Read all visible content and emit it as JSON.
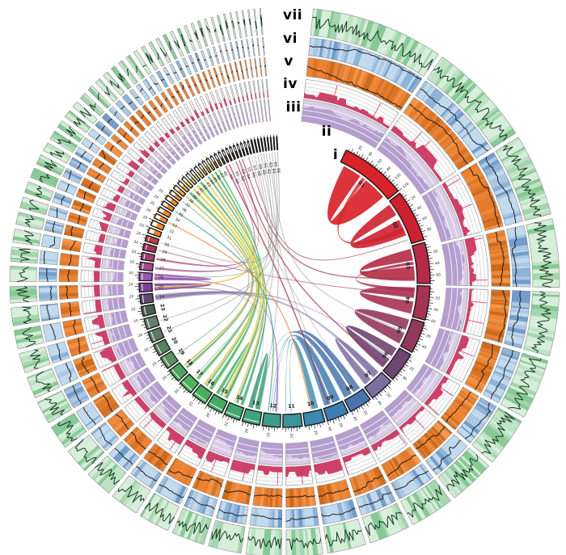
{
  "figure": {
    "background": "#ffffff",
    "description": "Circos-style circular genome plot: seven concentric tracks (i ideogram, ii scale ticks, iii purple density, iv white track with crimson histogram, v orange track with line, vi blue track with line, vii green track with line) over 66 chromosome/scaffold segments with syntenic ribbons in the centre."
  },
  "track_labels": {
    "vii": "vii",
    "vi": "vi",
    "v": "v",
    "iv": "iv",
    "iii": "iii",
    "ii": "ii",
    "i": "i"
  },
  "chart_data": {
    "type": "circos",
    "seed": 11,
    "scale": {
      "minor_tick": 5,
      "major_tick": 10,
      "major_label_interval": 20
    },
    "tracks": [
      {
        "id": "vii",
        "label": "vii",
        "kind": "stripe-line",
        "bg": "#d7eeda",
        "stripe": "#53b069",
        "line": "#0d3018"
      },
      {
        "id": "vi",
        "label": "vi",
        "kind": "stripe-line",
        "bg": "#c2daee",
        "stripe": "#3e74b4",
        "line": "#15161a"
      },
      {
        "id": "v",
        "label": "v",
        "kind": "stripe-line",
        "bg": "#ee8233",
        "stripe": "#b85c0f",
        "stripe2": "#f9a65f",
        "line": "#15161a"
      },
      {
        "id": "iv",
        "label": "iv",
        "kind": "grid-hist",
        "bg": "#ffffff",
        "grid": "#c4c4c4",
        "hist": "#cb3763"
      },
      {
        "id": "iii",
        "label": "iii",
        "kind": "hist-band",
        "bg": "#d9cce6",
        "hist": "#b39bce",
        "grid": "#ffffff"
      },
      {
        "id": "ii",
        "label": "ii",
        "kind": "scale-ticks",
        "tick": "#222222"
      },
      {
        "id": "i",
        "label": "i",
        "kind": "ideogram",
        "outline": "#141414"
      }
    ],
    "segments": [
      {
        "id": "01",
        "size": 120,
        "color": "#d8232a"
      },
      {
        "id": "02",
        "size": 95,
        "color": "#ce2130"
      },
      {
        "id": "03",
        "size": 75,
        "color": "#b52a47"
      },
      {
        "id": "04",
        "size": 62,
        "color": "#a63352"
      },
      {
        "id": "05",
        "size": 58,
        "color": "#93395c"
      },
      {
        "id": "06",
        "size": 55,
        "color": "#6f4572"
      },
      {
        "id": "07",
        "size": 45,
        "color": "#7b6fa0"
      },
      {
        "id": "08",
        "size": 42,
        "color": "#4a73ad"
      },
      {
        "id": "09",
        "size": 40,
        "color": "#3f7eb3"
      },
      {
        "id": "10",
        "size": 37,
        "color": "#3b88b0"
      },
      {
        "id": "11",
        "size": 35,
        "color": "#3d9499"
      },
      {
        "id": "12",
        "size": 33,
        "color": "#3f9e89"
      },
      {
        "id": "13",
        "size": 32,
        "color": "#3fa37b"
      },
      {
        "id": "14",
        "size": 30,
        "color": "#42a76d"
      },
      {
        "id": "15",
        "size": 30,
        "color": "#45ab63"
      },
      {
        "id": "16",
        "size": 28,
        "color": "#4aae5d"
      },
      {
        "id": "17",
        "size": 26,
        "color": "#4fb15a"
      },
      {
        "id": "18",
        "size": 25,
        "color": "#4aa55b"
      },
      {
        "id": "19",
        "size": 23,
        "color": "#5f9160"
      },
      {
        "id": "20",
        "size": 22,
        "color": "#57815c"
      },
      {
        "id": "21",
        "size": 21,
        "color": "#5d7a5f"
      },
      {
        "id": "22",
        "size": 20,
        "color": "#687c6c"
      },
      {
        "id": "23",
        "size": 18,
        "color": "#4e5d54"
      },
      {
        "id": "24",
        "size": 17,
        "color": "#5e4a6b"
      },
      {
        "id": "25",
        "size": 16,
        "color": "#7e3f97"
      },
      {
        "id": "26",
        "size": 15,
        "color": "#9a52b4"
      },
      {
        "id": "27",
        "size": 14,
        "color": "#a34a88"
      },
      {
        "id": "28",
        "size": 13,
        "color": "#a23f6d"
      },
      {
        "id": "29",
        "size": 12,
        "color": "#a23458"
      },
      {
        "id": "30",
        "size": 11,
        "color": "#b04a3a"
      },
      {
        "id": "31",
        "size": 10,
        "color": "#ee8530"
      },
      {
        "id": "32",
        "size": 10,
        "color": "#ef8932"
      },
      {
        "id": "33",
        "size": 9,
        "color": "#f08c35"
      },
      {
        "id": "34",
        "size": 9,
        "color": "#f08c35"
      },
      {
        "id": "35",
        "size": 8,
        "color": "#ef8932"
      },
      {
        "id": "36",
        "size": 8,
        "color": "#f09030"
      },
      {
        "id": "37",
        "size": 7,
        "color": "#f09030"
      },
      {
        "id": "38",
        "size": 7,
        "color": "#eeab32"
      },
      {
        "id": "39",
        "size": 6,
        "color": "#edb434"
      },
      {
        "id": "40",
        "size": 6,
        "color": "#e7d44e"
      },
      {
        "id": "41",
        "size": 5,
        "color": "#e4e06a"
      },
      {
        "id": "42",
        "size": 5,
        "color": "#e2e272"
      },
      {
        "id": "43",
        "size": 5,
        "color": "#e6da58"
      },
      {
        "id": "44",
        "size": 4,
        "color": "#ecd246"
      },
      {
        "id": "45",
        "size": 4,
        "color": "#edca3e"
      },
      {
        "id": "46",
        "size": 4,
        "color": "#e9bc36"
      },
      {
        "id": "47",
        "size": 3.5,
        "color": "#cf9a2e"
      },
      {
        "id": "48",
        "size": 3.5,
        "color": "#c08828"
      },
      {
        "id": "49",
        "size": 3,
        "color": "#9a6a2e"
      },
      {
        "id": "50",
        "size": 3,
        "color": "#8a5c28"
      },
      {
        "id": "51",
        "size": 2.8,
        "color": "#7e5226"
      },
      {
        "id": "52",
        "size": 2.6,
        "color": "#754b24"
      },
      {
        "id": "53",
        "size": 2.4,
        "color": "#6e4522"
      },
      {
        "id": "54",
        "size": 2.2,
        "color": "#684026"
      },
      {
        "id": "55",
        "size": 2,
        "color": "#5e3a2a"
      },
      {
        "id": "56",
        "size": 2,
        "color": "#54342c"
      },
      {
        "id": "57",
        "size": 1.8,
        "color": "#48302e"
      },
      {
        "id": "58",
        "size": 1.6,
        "color": "#3a2e30"
      },
      {
        "id": "59",
        "size": 1.5,
        "color": "#343036"
      },
      {
        "id": "60",
        "size": 1.4,
        "color": "#303036"
      },
      {
        "id": "61",
        "size": 1.3,
        "color": "#2e2e34"
      },
      {
        "id": "62",
        "size": 1.2,
        "color": "#2c2c32"
      },
      {
        "id": "63",
        "size": 1.1,
        "color": "#2a2a30"
      },
      {
        "id": "64",
        "size": 1,
        "color": "#28282e"
      },
      {
        "id": "65",
        "size": 1,
        "color": "#26262c"
      },
      {
        "id": "66",
        "size": 1,
        "color": "#24242a"
      }
    ],
    "links": [
      {
        "a": 1,
        "f0": 0.08,
        "f1": 0.4,
        "b": 1,
        "g0": 0.52,
        "g1": 0.92,
        "c": "#d8232a",
        "o": 0.92,
        "k": 0.45
      },
      {
        "a": 1,
        "f0": 0.44,
        "f1": 0.5,
        "b": 2,
        "g0": 0.62,
        "g1": 0.72,
        "c": "#d8232a",
        "o": 0.8,
        "k": 0.42
      },
      {
        "a": 2,
        "f0": 0.06,
        "f1": 0.32,
        "b": 2,
        "g0": 0.44,
        "g1": 0.8,
        "c": "#ce2130",
        "o": 0.9,
        "k": 0.45
      },
      {
        "a": 3,
        "f0": 0.07,
        "f1": 0.38,
        "b": 3,
        "g0": 0.54,
        "g1": 0.93,
        "c": "#b52a46",
        "o": 0.9,
        "k": 0.45
      },
      {
        "a": 3,
        "f0": 0.42,
        "f1": 0.5,
        "b": 4,
        "g0": 0.08,
        "g1": 0.2,
        "c": "#ad2f4e",
        "o": 0.85,
        "k": 0.4
      },
      {
        "a": 4,
        "f0": 0.06,
        "f1": 0.4,
        "b": 4,
        "g0": 0.52,
        "g1": 0.92,
        "c": "#a63352",
        "o": 0.9,
        "k": 0.45
      },
      {
        "a": 5,
        "f0": 0.05,
        "f1": 0.42,
        "b": 5,
        "g0": 0.54,
        "g1": 0.94,
        "c": "#93395c",
        "o": 0.9,
        "k": 0.45
      },
      {
        "a": 6,
        "f0": 0.06,
        "f1": 0.4,
        "b": 6,
        "g0": 0.53,
        "g1": 0.92,
        "c": "#6f4572",
        "o": 0.9,
        "k": 0.45
      },
      {
        "a": 7,
        "f0": 0.08,
        "f1": 0.42,
        "b": 7,
        "g0": 0.55,
        "g1": 0.9,
        "c": "#7b6fa0",
        "o": 0.85,
        "k": 0.45
      },
      {
        "a": 7,
        "f0": 0.15,
        "f1": 0.3,
        "b": 24,
        "g0": 0.15,
        "g1": 0.85,
        "c": "#8a7fae",
        "o": 0.6,
        "k": 0.15
      },
      {
        "a": 8,
        "f0": 0.08,
        "f1": 0.45,
        "b": 12,
        "g0": 0.46,
        "g1": 0.49,
        "c": "#4a73ad",
        "o": 0.85,
        "k": 0.22
      },
      {
        "a": 8,
        "f0": 0.55,
        "f1": 0.95,
        "b": 13,
        "g0": 0.3,
        "g1": 0.33,
        "c": "#4a73ad",
        "o": 0.85,
        "k": 0.22
      },
      {
        "a": 9,
        "f0": 0.08,
        "f1": 0.5,
        "b": 12,
        "g0": 0.62,
        "g1": 0.64,
        "c": "#3f7eb3",
        "o": 0.85,
        "k": 0.24
      },
      {
        "a": 9,
        "f0": 0.58,
        "f1": 0.92,
        "b": 11,
        "g0": 0.52,
        "g1": 0.55,
        "c": "#3f7eb3",
        "o": 0.8,
        "k": 0.26
      },
      {
        "a": 10,
        "f0": 0.15,
        "f1": 0.5,
        "b": 11,
        "g0": 0.82,
        "g1": 0.84,
        "c": "#3b88b0",
        "o": 0.8,
        "k": 0.26
      },
      {
        "a": 13,
        "f0": 0.15,
        "f1": 0.45,
        "b": 13,
        "g0": 0.58,
        "g1": 0.9,
        "c": "#3fa37b",
        "o": 0.85,
        "k": 0.42
      },
      {
        "a": 14,
        "f0": 0.08,
        "f1": 0.28,
        "b": 44,
        "g0": 0.05,
        "g1": 0.95,
        "c": "#43a874",
        "o": 0.8,
        "k": 0.1
      },
      {
        "a": 14,
        "f0": 0.45,
        "f1": 0.6,
        "b": 42,
        "g0": 0.05,
        "g1": 0.95,
        "c": "#43a874",
        "o": 0.8,
        "k": 0.1
      },
      {
        "a": 15,
        "f0": 0.08,
        "f1": 0.26,
        "b": 46,
        "g0": 0.05,
        "g1": 0.95,
        "c": "#45ab63",
        "o": 0.8,
        "k": 0.1
      },
      {
        "a": 15,
        "f0": 0.5,
        "f1": 0.62,
        "b": 15,
        "g0": 0.72,
        "g1": 0.95,
        "c": "#45ab63",
        "o": 0.8,
        "k": 0.38
      },
      {
        "a": 16,
        "f0": 0.12,
        "f1": 0.38,
        "b": 41,
        "g0": 0.05,
        "g1": 0.95,
        "c": "#4aae5d",
        "o": 0.8,
        "k": 0.1
      },
      {
        "a": 16,
        "f0": 0.55,
        "f1": 0.68,
        "b": 45,
        "g0": 0.05,
        "g1": 0.95,
        "c": "#48aa66",
        "o": 0.75,
        "k": 0.1
      },
      {
        "a": 17,
        "f0": 0.18,
        "f1": 0.42,
        "b": 47,
        "g0": 0.05,
        "g1": 0.95,
        "c": "#4fb15a",
        "o": 0.75,
        "k": 0.1
      },
      {
        "a": 18,
        "f0": 0.25,
        "f1": 0.45,
        "b": 39,
        "g0": 0.05,
        "g1": 0.95,
        "c": "#4aa55b",
        "o": 0.7,
        "k": 0.1
      },
      {
        "a": 25,
        "f0": 0.08,
        "f1": 0.52,
        "b": 25,
        "g0": 0.6,
        "g1": 0.95,
        "c": "#7e3f97",
        "o": 0.85,
        "k": 0.42
      },
      {
        "a": 26,
        "f0": 0.08,
        "f1": 0.55,
        "b": 26,
        "g0": 0.62,
        "g1": 0.95,
        "c": "#9a52b4",
        "o": 0.85,
        "k": 0.42
      },
      {
        "a": 26,
        "f0": 0.3,
        "f1": 0.48,
        "b": 12,
        "g0": 0.22,
        "g1": 0.34,
        "c": "#8d5ab0",
        "o": 0.65,
        "k": 0.14
      },
      {
        "a": 25,
        "f0": 0.2,
        "f1": 0.35,
        "b": 13,
        "g0": 0.72,
        "g1": 0.74,
        "c": "#8a4aa5",
        "o": 0.6,
        "k": 0.16
      },
      {
        "a": 24,
        "f0": 0.3,
        "f1": 0.7,
        "b": 6,
        "g0": 0.46,
        "g1": 0.49,
        "c": "#7a5a90",
        "o": 0.55,
        "k": 0.14
      },
      {
        "a": 27,
        "f0": 0.25,
        "f1": 0.55,
        "b": 50,
        "g0": 0.05,
        "g1": 0.95,
        "c": "#a34a88",
        "o": 0.7,
        "k": 0.16
      },
      {
        "a": 28,
        "f0": 0.3,
        "f1": 0.6,
        "b": 53,
        "g0": 0.05,
        "g1": 0.95,
        "c": "#a23f6d",
        "o": 0.7,
        "k": 0.16
      },
      {
        "a": 29,
        "f0": 0.5,
        "b": 4,
        "g0": 0.31,
        "c": "#a23458",
        "o": 0.6,
        "k": 0.12,
        "h": 1
      },
      {
        "a": 49,
        "f0": 0.5,
        "b": 9,
        "g0": 0.72,
        "c": "#a0304a",
        "o": 0.7,
        "k": 0.1,
        "h": 1,
        "w": 1.6
      },
      {
        "a": 52,
        "f0": 0.5,
        "b": 6,
        "g0": 0.8,
        "c": "#a0304a",
        "o": 0.7,
        "k": 0.1,
        "h": 1,
        "w": 1.4
      },
      {
        "a": 54,
        "f0": 0.5,
        "b": 3,
        "g0": 0.85,
        "c": "#9a3a50",
        "o": 0.7,
        "k": 0.1,
        "h": 1,
        "w": 1.4
      },
      {
        "a": 56,
        "f0": 0.5,
        "b": 2,
        "g0": 0.9,
        "c": "#9a3a50",
        "o": 0.65,
        "k": 0.1,
        "h": 1
      },
      {
        "a": 40,
        "f0": 0.5,
        "b": 16,
        "g0": 0.79,
        "c": "#ddca44",
        "o": 0.85,
        "k": 0.1,
        "h": 1,
        "w": 2.2
      },
      {
        "a": 41,
        "f0": 0.5,
        "b": 15,
        "g0": 0.34,
        "c": "#e2dc5e",
        "o": 0.85,
        "k": 0.1,
        "h": 1,
        "w": 2.4
      },
      {
        "a": 43,
        "f0": 0.5,
        "b": 14,
        "g0": 0.7,
        "c": "#e0d452",
        "o": 0.85,
        "k": 0.1,
        "h": 1,
        "w": 1.8
      },
      {
        "a": 45,
        "f0": 0.5,
        "b": 25,
        "g0": 0.4,
        "c": "#e4c43c",
        "o": 0.8,
        "k": 0.1,
        "h": 1,
        "w": 1.6
      },
      {
        "a": 38,
        "f0": 0.5,
        "b": 18,
        "g0": 0.6,
        "c": "#c2b236",
        "o": 0.8,
        "k": 0.1,
        "h": 1,
        "w": 1.6
      },
      {
        "a": 33,
        "f0": 0.5,
        "b": 10,
        "g0": 0.56,
        "c": "#ef8932",
        "o": 0.7,
        "k": 0.12,
        "h": 1,
        "w": 1.4
      },
      {
        "a": 12,
        "f0": 0.76,
        "b": 35,
        "g0": 0.5,
        "c": "#3f9e89",
        "o": 0.7,
        "k": 0.12,
        "h": 1,
        "w": 1.4
      },
      {
        "a": 19,
        "f0": 0.5,
        "b": 37,
        "g0": 0.5,
        "c": "#5f9160",
        "o": 0.6,
        "k": 0.12,
        "h": 1
      },
      {
        "a": 58,
        "f0": 0.5,
        "b": 21,
        "g0": 0.5,
        "c": "#8a8a8a",
        "o": 0.55,
        "k": 0.06,
        "h": 1
      },
      {
        "a": 59,
        "f0": 0.5,
        "b": 15,
        "g0": 0.2,
        "c": "#8a8a8a",
        "o": 0.55,
        "k": 0.06,
        "h": 1
      },
      {
        "a": 60,
        "f0": 0.5,
        "b": 9,
        "g0": 0.4,
        "c": "#8a8a8a",
        "o": 0.55,
        "k": 0.06,
        "h": 1
      },
      {
        "a": 61,
        "f0": 0.5,
        "b": 26,
        "g0": 0.7,
        "c": "#8a8a8a",
        "o": 0.55,
        "k": 0.06,
        "h": 1
      },
      {
        "a": 62,
        "f0": 0.5,
        "b": 13,
        "g0": 0.15,
        "c": "#8a8a8a",
        "o": 0.55,
        "k": 0.06,
        "h": 1
      },
      {
        "a": 63,
        "f0": 0.5,
        "b": 5,
        "g0": 0.5,
        "c": "#8a8a8a",
        "o": 0.55,
        "k": 0.06,
        "h": 1
      },
      {
        "a": 64,
        "f0": 0.5,
        "b": 17,
        "g0": 0.6,
        "c": "#8a8a8a",
        "o": 0.55,
        "k": 0.06,
        "h": 1
      },
      {
        "a": 65,
        "f0": 0.5,
        "b": 30,
        "g0": 0.5,
        "c": "#8a8a8a",
        "o": 0.55,
        "k": 0.06,
        "h": 1
      },
      {
        "a": 66,
        "f0": 0.5,
        "b": 22,
        "g0": 0.4,
        "c": "#8a8a8a",
        "o": 0.55,
        "k": 0.06,
        "h": 1
      },
      {
        "a": 57,
        "f0": 0.5,
        "b": 45,
        "g0": 0.5,
        "c": "#9a9a9a",
        "o": 0.5,
        "k": 0.06,
        "h": 1
      },
      {
        "a": 51,
        "f0": 0.5,
        "b": 8,
        "g0": 0.3,
        "c": "#9a9a9a",
        "o": 0.5,
        "k": 0.06,
        "h": 1
      }
    ]
  }
}
